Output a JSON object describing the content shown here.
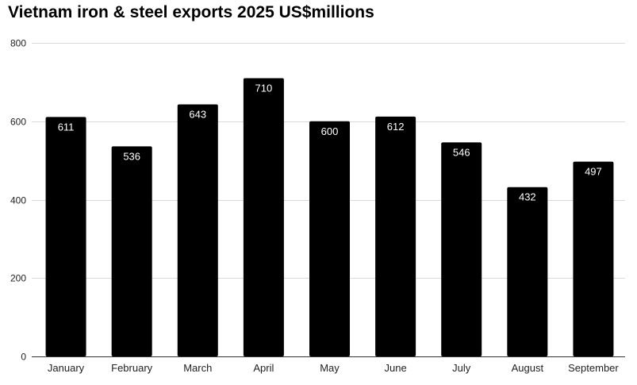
{
  "chart_data": {
    "type": "bar",
    "title": "Vietnam iron & steel exports 2025 US$millions",
    "xlabel": "",
    "ylabel": "",
    "categories": [
      "January",
      "February",
      "March",
      "April",
      "May",
      "June",
      "July",
      "August",
      "September"
    ],
    "values": [
      611,
      536,
      643,
      710,
      600,
      612,
      546,
      432,
      497
    ],
    "ylim": [
      0,
      800
    ],
    "yticks": [
      0,
      200,
      400,
      600,
      800
    ],
    "grid": true,
    "legend": "none",
    "bar_color": "#000000",
    "data_label_color": "#ffffff",
    "grid_color": "#d9d9d9"
  }
}
